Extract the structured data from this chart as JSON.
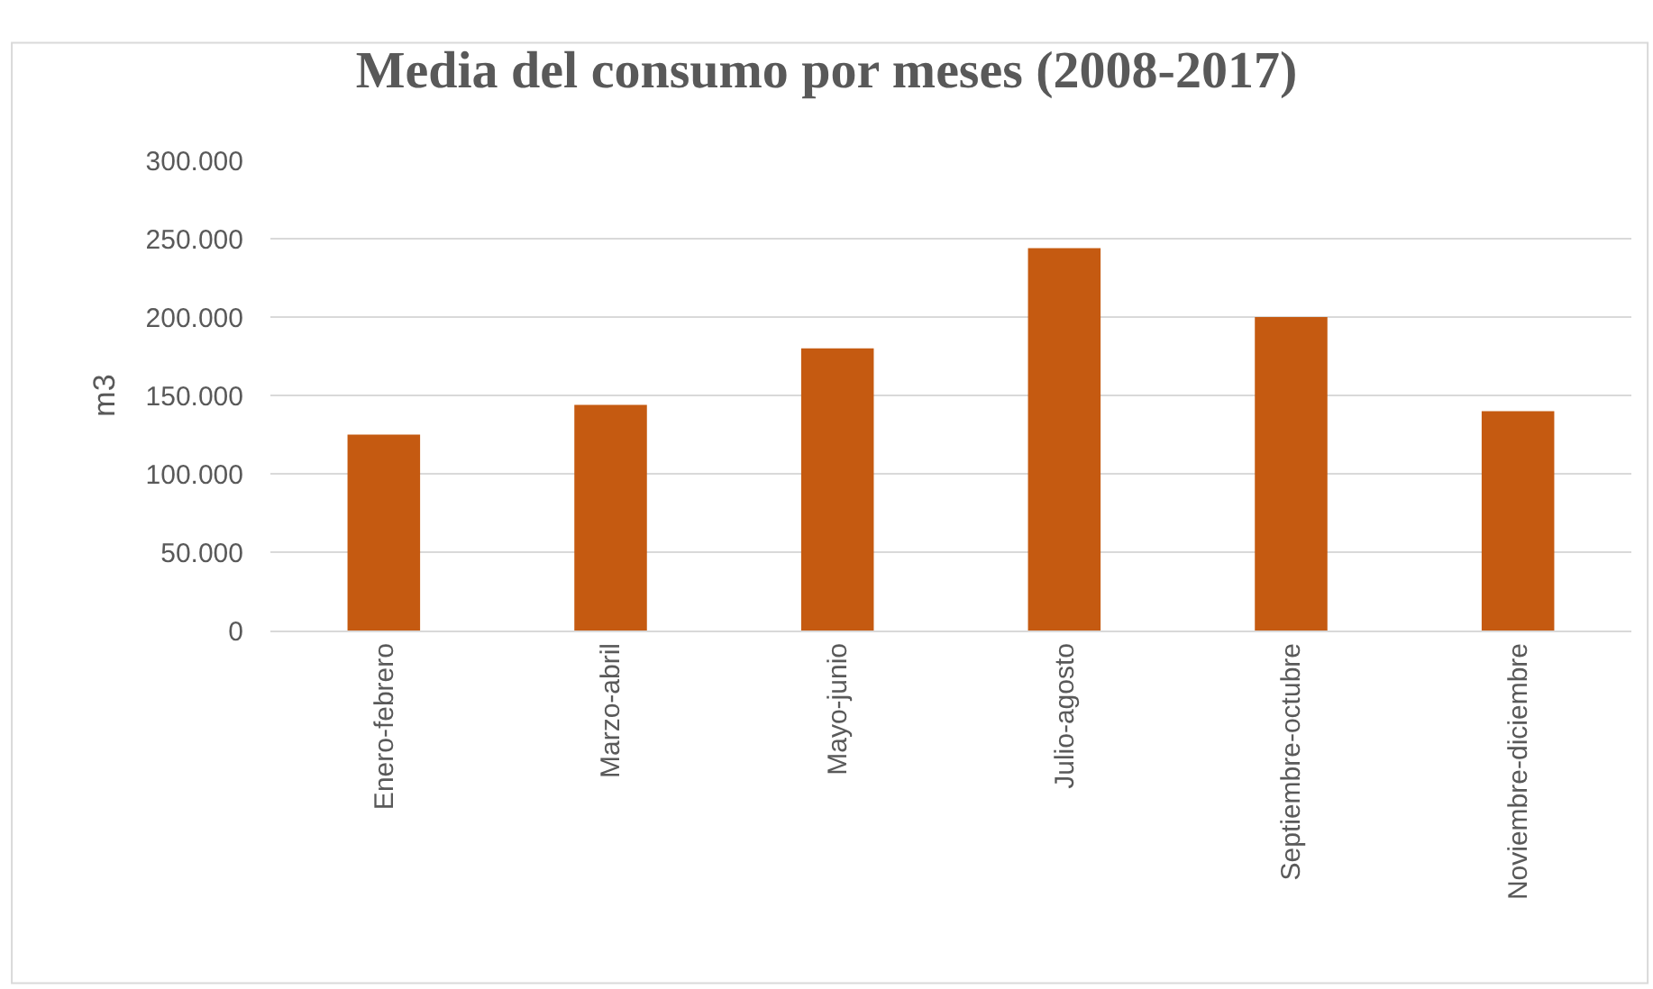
{
  "chart_data": {
    "type": "bar",
    "title": "Media del consumo por meses (2008-2017)",
    "ylabel": "m3",
    "categories": [
      "Enero-febrero",
      "Marzo-abril",
      "Mayo-junio",
      "Julio-agosto",
      "Septiembre-octubre",
      "Noviembre-diciembre"
    ],
    "values": [
      125000,
      144000,
      180000,
      244000,
      200000,
      140000
    ],
    "color": "#c55a11",
    "ylim": [
      0,
      300000
    ],
    "yticks": [
      0,
      {
        "value": 50000,
        "label": "50.000"
      },
      {
        "value": 100000,
        "label": "100.000"
      },
      {
        "value": 150000,
        "label": "150.000"
      },
      {
        "value": 200000,
        "label": "200.000"
      },
      {
        "value": 250000,
        "label": "250.000"
      },
      {
        "value": 300000,
        "label": "300.000"
      }
    ],
    "grid": "y",
    "legend": false
  }
}
